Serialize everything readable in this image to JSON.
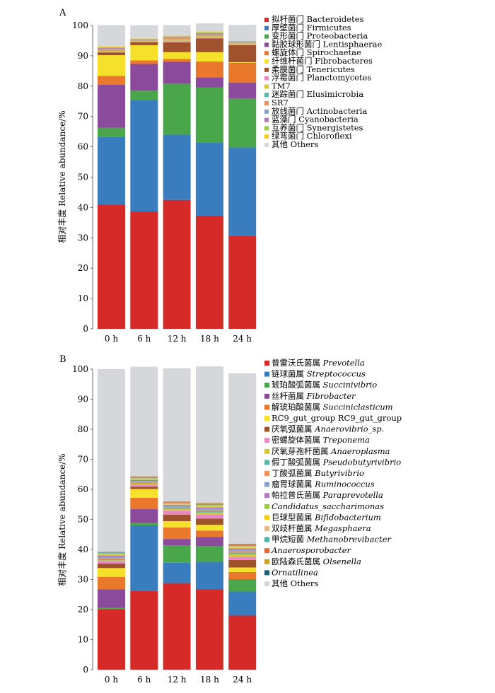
{
  "chart_data": [
    {
      "type": "bar",
      "stacked": true,
      "panel_label": "A",
      "ylabel": "相对丰度 Relative abundance/%",
      "ylim": [
        0,
        100
      ],
      "yticks": [
        0,
        10,
        20,
        30,
        40,
        50,
        60,
        70,
        80,
        90,
        100
      ],
      "categories": [
        "0 h",
        "6 h",
        "12 h",
        "18 h",
        "24 h"
      ],
      "legend_position": "right",
      "series": [
        {
          "name": "拟杆菌门 Bacteroidetes",
          "color": "#d62a28",
          "values": [
            41,
            38.7,
            42.5,
            37.3,
            30.7
          ]
        },
        {
          "name": "厚壁菌门 Firmicutes",
          "color": "#3a7dbf",
          "values": [
            22.2,
            36.8,
            21.5,
            24.2,
            29.1
          ]
        },
        {
          "name": "变形菌门 Proteobacteria",
          "color": "#4aa64a",
          "values": [
            3.1,
            3,
            16.8,
            18.1,
            16.2
          ]
        },
        {
          "name": "黏胶球形菌门 Lentisphaerae",
          "color": "#8c4a9c",
          "values": [
            14.2,
            8.8,
            7.2,
            3.3,
            5.2
          ]
        },
        {
          "name": "螺旋体门 Spirochaetae",
          "color": "#e9772c",
          "values": [
            2.9,
            1.2,
            1,
            5.2,
            6.5
          ]
        },
        {
          "name": "纤维杆菌门 Fibrobacteres",
          "color": "#f5e12c",
          "values": [
            6.8,
            5,
            2.2,
            3.1,
            0.2
          ]
        },
        {
          "name": "柔膜菌门 Tenericutes",
          "color": "#a0522d",
          "values": [
            0.9,
            1,
            3.2,
            4.5,
            5.6
          ]
        },
        {
          "name": "浮霉菌门 Planctomycetes",
          "color": "#e78ac3",
          "values": [
            0.3,
            0.2,
            0.4,
            0.3,
            0.3
          ]
        },
        {
          "name": "TM7",
          "color": "#d4c53b",
          "values": [
            0.3,
            0.3,
            0.5,
            0.5,
            0.4
          ]
        },
        {
          "name": "迷踪菌门 Elusimicrobia",
          "color": "#57b8a8",
          "values": [
            0.2,
            0.1,
            0.1,
            0.1,
            0.1
          ]
        },
        {
          "name": "SR7",
          "color": "#f08f5e",
          "values": [
            0.3,
            0.1,
            0.4,
            0.5,
            0.2
          ]
        },
        {
          "name": "放线菌门 Actinobacteria",
          "color": "#8aa1cc",
          "values": [
            0.2,
            0.2,
            0.3,
            0.2,
            0.2
          ]
        },
        {
          "name": "蓝藻门 Cyanobacteria",
          "color": "#b076b8",
          "values": [
            0.2,
            0.1,
            0.1,
            0.2,
            0.1
          ]
        },
        {
          "name": "互养菌门 Synergistetes",
          "color": "#9dc93f",
          "values": [
            0.2,
            0.1,
            0.2,
            0.2,
            0.1
          ]
        },
        {
          "name": "绿弯菌门 Chloroflexi",
          "color": "#f3cd17",
          "values": [
            0.2,
            0.1,
            0.2,
            0.3,
            0.1
          ]
        },
        {
          "name": "其他 Others",
          "color": "#d6d7db",
          "values": [
            7.1,
            4.4,
            3.5,
            2.7,
            5.2
          ]
        }
      ]
    },
    {
      "type": "bar",
      "stacked": true,
      "panel_label": "B",
      "ylabel": "相对丰度 Relative abundance/%",
      "ylim": [
        0,
        100
      ],
      "yticks": [
        0,
        10,
        20,
        30,
        40,
        50,
        60,
        70,
        80,
        90,
        100
      ],
      "categories": [
        "0 h",
        "6 h",
        "12 h",
        "18 h",
        "24 h"
      ],
      "legend_position": "right",
      "series": [
        {
          "name": "普雷沃氏菌属 Prevotella",
          "name_plain": "普雷沃氏菌属",
          "name_italic": "Prevotella",
          "color": "#d62a28",
          "values": [
            20.2,
            26.2,
            28.8,
            26.7,
            18
          ]
        },
        {
          "name": "链球菌属 Streptococcus",
          "name_plain": "链球菌属",
          "name_italic": "Streptococcus",
          "color": "#3a7dbf",
          "values": [
            0,
            21.8,
            6.8,
            9.2,
            8
          ]
        },
        {
          "name": "琥珀酸弧菌属 Succinivibrio",
          "name_plain": "琥珀酸弧菌属",
          "name_italic": "Succinivibrio",
          "color": "#4aa64a",
          "values": [
            0.4,
            0.8,
            5.8,
            5.2,
            4
          ]
        },
        {
          "name": "丝杆菌属 Fibrobacter",
          "name_plain": "丝杆菌属",
          "name_italic": "Fibrobacter",
          "color": "#8c4a9c",
          "values": [
            6.1,
            4.6,
            2.1,
            3.1,
            0.1
          ]
        },
        {
          "name": "解琥珀酸菌属 Succiniclasticum",
          "name_plain": "解琥珀酸菌属",
          "name_italic": "Succiniclasticum",
          "color": "#e9772c",
          "values": [
            4.2,
            3.8,
            3.8,
            2.1,
            2.4
          ]
        },
        {
          "name": "RC9_gut_group RC9_gut_group",
          "name_plain": "RC9_gut_group RC9_gut_group",
          "name_italic": "",
          "color": "#f5e12c",
          "values": [
            2.9,
            2.9,
            2.1,
            1.9,
            1.5
          ]
        },
        {
          "name": "厌氧弧菌属 Anaerovibrio_sp.",
          "name_plain": "厌氧弧菌属",
          "name_italic": "Anaerovibrio_sp.",
          "color": "#a0522d",
          "values": [
            1.5,
            0.8,
            2.2,
            2.1,
            2.5
          ]
        },
        {
          "name": "密螺旋体菌属 Treponema",
          "name_plain": "密螺旋体菌属",
          "name_italic": "Treponema",
          "color": "#e78ac3",
          "values": [
            0.8,
            0.7,
            1.3,
            1.4,
            1.1
          ]
        },
        {
          "name": "厌氧芽孢杆菌属 Anaeroplasma",
          "name_plain": "厌氧芽孢杆菌属",
          "name_italic": "Anaeroplasma",
          "color": "#d4c53b",
          "values": [
            0.3,
            0.3,
            0.5,
            0.6,
            0.8
          ]
        },
        {
          "name": "假丁酸弧菌属 Pseudobutyrivibrio",
          "name_plain": "假丁酸弧菌属",
          "name_italic": "Pseudobutyrivibrio",
          "color": "#57b8a8",
          "values": [
            0.3,
            0.3,
            0.4,
            0.5,
            0.6
          ]
        },
        {
          "name": "丁酸弧菌属 Butyrivibrio",
          "name_plain": "丁酸弧菌属",
          "name_italic": "Butyrivibrio",
          "color": "#f08f5e",
          "values": [
            0.4,
            0.3,
            0.3,
            0.4,
            0.5
          ]
        },
        {
          "name": "瘤胃球菌属 Ruminococcus",
          "name_plain": "瘤胃球菌属",
          "name_italic": "Ruminococcus",
          "color": "#8aa1cc",
          "values": [
            0.5,
            0.3,
            0.3,
            0.4,
            0.4
          ]
        },
        {
          "name": "帕拉普氏菌属 Paraprevotella",
          "name_plain": "帕拉普氏菌属",
          "name_italic": "Paraprevotella",
          "color": "#b076b8",
          "values": [
            0.3,
            0.3,
            0.3,
            0.3,
            0.3
          ]
        },
        {
          "name": "Candidatus_saccharimonas",
          "name_plain": "",
          "name_italic": "Candidatus_saccharimonas",
          "color": "#9dc93f",
          "values": [
            0.3,
            0.2,
            0.2,
            0.3,
            0.3
          ]
        },
        {
          "name": "巨球型菌属 Bifidobacterium",
          "name_plain": "巨球型菌属",
          "name_italic": "Bifidobacterium",
          "color": "#f3cd17",
          "values": [
            0.2,
            0.2,
            0.2,
            0.3,
            0.3
          ]
        },
        {
          "name": "双歧杆菌属 Megasphaera",
          "name_plain": "双歧杆菌属",
          "name_italic": "Megasphaera",
          "color": "#e6b98c",
          "values": [
            0.2,
            0.2,
            0.2,
            0.2,
            0.3
          ]
        },
        {
          "name": "甲烷短菌 Methanobrevibacter",
          "name_plain": "甲烷短菌",
          "name_italic": "Methanobrevibacter",
          "color": "#4fb3a6",
          "values": [
            0.2,
            0.2,
            0.2,
            0.2,
            0.3
          ]
        },
        {
          "name": "Anaerosporobacter",
          "name_plain": "",
          "name_italic": "Anaerosporobacter",
          "color": "#e36a3a",
          "values": [
            0.2,
            0.2,
            0.2,
            0.2,
            0.2
          ]
        },
        {
          "name": "欧陆森氏菌属 Olsenella",
          "name_plain": "欧陆森氏菌属",
          "name_italic": "Olsenella",
          "color": "#c9a227",
          "values": [
            0.1,
            0.1,
            0.1,
            0.2,
            0.2
          ]
        },
        {
          "name": "Ornatilinea",
          "name_plain": "",
          "name_italic": "Ornatilinea",
          "color": "#1d5f73",
          "values": [
            0.1,
            0.1,
            0.1,
            0.1,
            0.1
          ]
        },
        {
          "name": "其他 Others",
          "name_plain": "其他 Others",
          "name_italic": "",
          "color": "#d6d7db",
          "values": [
            60.8,
            36.5,
            44.4,
            45.5,
            56.7
          ]
        }
      ]
    }
  ]
}
